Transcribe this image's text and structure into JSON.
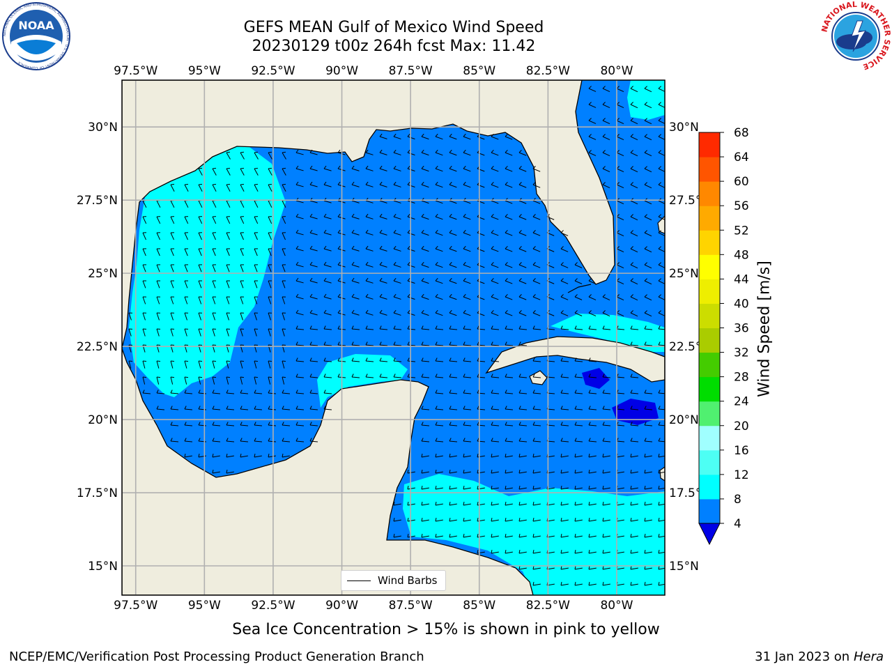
{
  "header": {
    "title_line1": "GEFS MEAN Gulf of Mexico Wind Speed",
    "title_line2": "20230129 t00z 264h fcst   Max: 11.42"
  },
  "logos": {
    "left": "NOAA",
    "left_ring_text": "NATIONAL OCEANIC AND ATMOSPHERIC ADMINISTRATION · U.S. DEPARTMENT OF COMMERCE",
    "right_ring_text": "NATIONAL WEATHER SERVICE"
  },
  "map": {
    "lon_ticks": [
      "97.5°W",
      "95°W",
      "92.5°W",
      "90°W",
      "87.5°W",
      "85°W",
      "82.5°W",
      "80°W"
    ],
    "lat_ticks": [
      "30°N",
      "27.5°N",
      "25°N",
      "22.5°N",
      "20°N",
      "17.5°N",
      "15°N"
    ],
    "lon_range": [
      -98,
      -78.25
    ],
    "lat_range": [
      14,
      31.6
    ],
    "legend_label": "Wind Barbs",
    "colors": {
      "land": "#efedde",
      "wind_4_8": "#0080ff",
      "wind_8_12": "#00ffff",
      "wind_below_4": "#0000e6",
      "grid": "#b0b0b0",
      "coast": "#000000"
    }
  },
  "colorbar": {
    "label": "Wind Speed [m/s]",
    "ticks": [
      "4",
      "8",
      "12",
      "16",
      "20",
      "24",
      "28",
      "32",
      "36",
      "40",
      "44",
      "48",
      "52",
      "56",
      "60",
      "64",
      "68"
    ],
    "colors": [
      "#0080ff",
      "#00ffff",
      "#4dfff4",
      "#a0ffff",
      "#50f070",
      "#00dd00",
      "#44cc00",
      "#aacc00",
      "#ccdd00",
      "#eeee00",
      "#ffff00",
      "#ffd400",
      "#ffaa00",
      "#ff8800",
      "#ff5500",
      "#ff2a00",
      "#ff0000"
    ],
    "under_color": "#0000e6"
  },
  "subtitle": "Sea Ice Concentration > 15% is shown in pink to yellow",
  "footer": {
    "left": "NCEP/EMC/Verification Post Processing Product Generation Branch",
    "right_date": "31 Jan 2023 on",
    "right_machine": "Hera"
  }
}
